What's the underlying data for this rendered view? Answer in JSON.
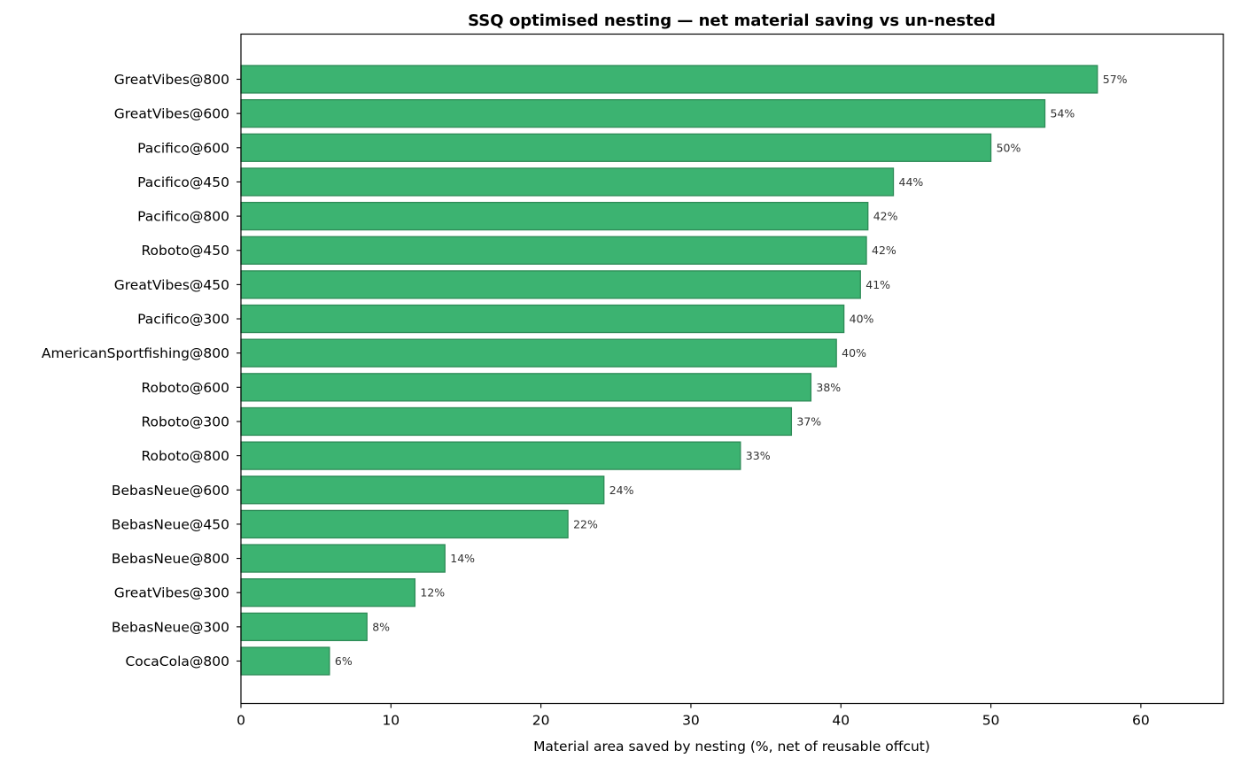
{
  "chart_data": {
    "type": "bar",
    "orientation": "horizontal",
    "title": "SSQ optimised nesting — net material saving vs un-nested",
    "xlabel": "Material area saved by nesting (%, net of reusable offcut)",
    "ylabel": "",
    "xlim": [
      0,
      65.5
    ],
    "xticks": [
      0,
      10,
      20,
      30,
      40,
      50,
      60
    ],
    "grid": false,
    "legend": "none",
    "categories": [
      "GreatVibes@800",
      "GreatVibes@600",
      "Pacifico@600",
      "Pacifico@450",
      "Pacifico@800",
      "Roboto@450",
      "GreatVibes@450",
      "Pacifico@300",
      "AmericanSportfishing@800",
      "Roboto@600",
      "Roboto@300",
      "Roboto@800",
      "BebasNeue@600",
      "BebasNeue@450",
      "BebasNeue@800",
      "GreatVibes@300",
      "BebasNeue@300",
      "CocaCola@800"
    ],
    "values": [
      57.1,
      53.6,
      50.0,
      43.5,
      41.8,
      41.7,
      41.3,
      40.2,
      39.7,
      38.0,
      36.7,
      33.3,
      24.2,
      21.8,
      13.6,
      11.6,
      8.4,
      5.9
    ],
    "value_labels": [
      "57%",
      "54%",
      "50%",
      "44%",
      "42%",
      "42%",
      "41%",
      "40%",
      "40%",
      "38%",
      "37%",
      "33%",
      "24%",
      "22%",
      "14%",
      "12%",
      "8%",
      "6%"
    ],
    "bar_color": "#3cb371",
    "bar_edge_color": "#2e8b57"
  }
}
